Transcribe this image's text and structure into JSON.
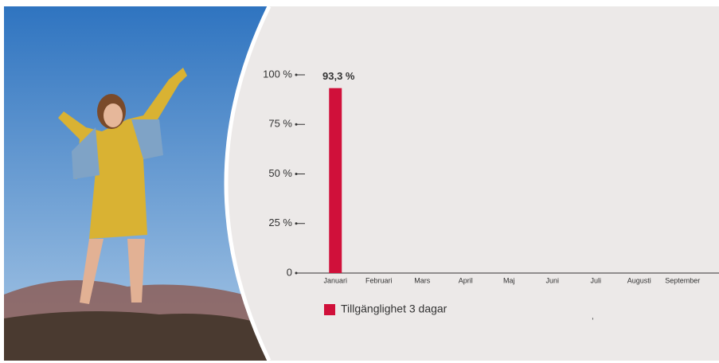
{
  "chart_data": {
    "type": "bar",
    "categories": [
      "Januari",
      "Februari",
      "Mars",
      "April",
      "Maj",
      "Juni",
      "Juli",
      "Augusti",
      "September"
    ],
    "series": [
      {
        "name": "Tillgänglighet 3 dagar",
        "color": "#d0103a",
        "values": [
          93.3,
          null,
          null,
          null,
          null,
          null,
          null,
          null,
          null
        ],
        "value_labels": [
          "93,3 %",
          null,
          null,
          null,
          null,
          null,
          null,
          null,
          null
        ]
      }
    ],
    "ylim": [
      0,
      100
    ],
    "yticks": [
      0,
      {
        "value": 25,
        "label": "25 %"
      },
      {
        "value": 50,
        "label": "50 %"
      },
      {
        "value": 75,
        "label": "75 %"
      },
      {
        "value": 100,
        "label": "100 %"
      }
    ],
    "grid": false
  }
}
